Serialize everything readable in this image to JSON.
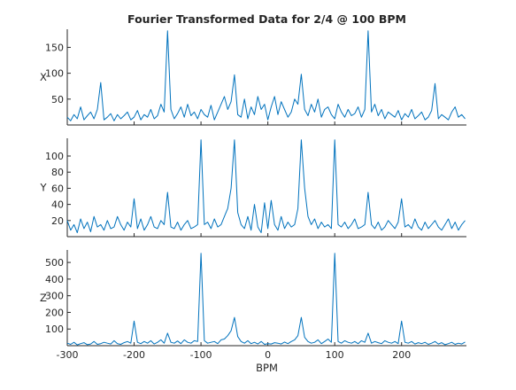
{
  "chart_data": [
    {
      "type": "line",
      "title": "Fourier Transformed Data for 2/4 @ 100 BPM",
      "xlabel": "",
      "ylabel": "X",
      "xlim": [
        -300,
        297
      ],
      "ylim": [
        0,
        185
      ],
      "xticks": [],
      "yticks": [
        50,
        100,
        150
      ],
      "grid": false,
      "line_color": "#0072bd",
      "series": [
        {
          "x": [
            -300,
            -295,
            -290,
            -285,
            -280,
            -275,
            -270,
            -265,
            -260,
            -255,
            -250,
            -245,
            -240,
            -235,
            -230,
            -225,
            -220,
            -215,
            -210,
            -205,
            -200,
            -195,
            -190,
            -185,
            -180,
            -175,
            -170,
            -165,
            -160,
            -155,
            -150,
            -145,
            -140,
            -135,
            -130,
            -125,
            -120,
            -115,
            -110,
            -105,
            -100,
            -95,
            -90,
            -85,
            -80,
            -75,
            -70,
            -65,
            -60,
            -55,
            -50,
            -45,
            -40,
            -35,
            -30,
            -25,
            -20,
            -15,
            -10,
            -5,
            0,
            5,
            10,
            15,
            20,
            25,
            30,
            35,
            40,
            45,
            50,
            55,
            60,
            65,
            70,
            75,
            80,
            85,
            90,
            95,
            100,
            105,
            110,
            115,
            120,
            125,
            130,
            135,
            140,
            145,
            150,
            155,
            160,
            165,
            170,
            175,
            180,
            185,
            190,
            195,
            200,
            205,
            210,
            215,
            220,
            225,
            230,
            235,
            240,
            245,
            250,
            255,
            260,
            265,
            270,
            275,
            280,
            285,
            290,
            295
          ],
          "values": [
            15,
            8,
            20,
            12,
            35,
            10,
            18,
            25,
            12,
            30,
            82,
            10,
            15,
            22,
            8,
            20,
            12,
            18,
            25,
            10,
            15,
            28,
            10,
            20,
            15,
            30,
            12,
            18,
            40,
            25,
            182,
            30,
            12,
            22,
            35,
            15,
            40,
            18,
            25,
            12,
            30,
            20,
            15,
            38,
            10,
            25,
            40,
            55,
            30,
            45,
            97,
            20,
            15,
            50,
            12,
            35,
            20,
            55,
            30,
            40,
            10,
            35,
            55,
            20,
            45,
            30,
            15,
            25,
            50,
            40,
            98,
            30,
            18,
            40,
            25,
            50,
            15,
            30,
            35,
            20,
            12,
            40,
            25,
            15,
            30,
            18,
            22,
            35,
            15,
            30,
            182,
            25,
            40,
            18,
            30,
            12,
            25,
            20,
            15,
            28,
            10,
            22,
            15,
            30,
            12,
            18,
            25,
            10,
            15,
            28,
            80,
            12,
            20,
            15,
            10,
            25,
            35,
            15,
            20,
            12
          ]
        }
      ]
    },
    {
      "type": "line",
      "title": "",
      "xlabel": "",
      "ylabel": "Y",
      "xlim": [
        -300,
        297
      ],
      "ylim": [
        0,
        122
      ],
      "xticks": [],
      "yticks": [
        20,
        40,
        60,
        80,
        100
      ],
      "grid": false,
      "line_color": "#0072bd",
      "series": [
        {
          "x": [
            -300,
            -295,
            -290,
            -285,
            -280,
            -275,
            -270,
            -265,
            -260,
            -255,
            -250,
            -245,
            -240,
            -235,
            -230,
            -225,
            -220,
            -215,
            -210,
            -205,
            -200,
            -195,
            -190,
            -185,
            -180,
            -175,
            -170,
            -165,
            -160,
            -155,
            -150,
            -145,
            -140,
            -135,
            -130,
            -125,
            -120,
            -115,
            -110,
            -105,
            -100,
            -95,
            -90,
            -85,
            -80,
            -75,
            -70,
            -65,
            -60,
            -55,
            -50,
            -45,
            -40,
            -35,
            -30,
            -25,
            -20,
            -15,
            -10,
            -5,
            0,
            5,
            10,
            15,
            20,
            25,
            30,
            35,
            40,
            45,
            50,
            55,
            60,
            65,
            70,
            75,
            80,
            85,
            90,
            95,
            100,
            105,
            110,
            115,
            120,
            125,
            130,
            135,
            140,
            145,
            150,
            155,
            160,
            165,
            170,
            175,
            180,
            185,
            190,
            195,
            200,
            205,
            210,
            215,
            220,
            225,
            230,
            235,
            240,
            245,
            250,
            255,
            260,
            265,
            270,
            275,
            280,
            285,
            290,
            295
          ],
          "values": [
            20,
            8,
            15,
            5,
            22,
            10,
            18,
            6,
            25,
            12,
            15,
            8,
            20,
            10,
            12,
            25,
            15,
            8,
            18,
            12,
            47,
            10,
            22,
            8,
            15,
            25,
            12,
            10,
            20,
            15,
            55,
            12,
            10,
            18,
            8,
            15,
            20,
            10,
            12,
            15,
            120,
            15,
            18,
            10,
            22,
            12,
            15,
            25,
            35,
            60,
            120,
            30,
            15,
            10,
            25,
            8,
            40,
            12,
            5,
            42,
            10,
            45,
            15,
            8,
            25,
            10,
            18,
            12,
            15,
            35,
            120,
            60,
            25,
            15,
            22,
            10,
            18,
            12,
            15,
            10,
            120,
            15,
            12,
            18,
            10,
            15,
            22,
            10,
            12,
            15,
            55,
            15,
            10,
            18,
            8,
            12,
            20,
            15,
            10,
            18,
            47,
            12,
            15,
            10,
            22,
            12,
            8,
            18,
            10,
            15,
            20,
            12,
            8,
            15,
            22,
            10,
            18,
            8,
            15,
            20
          ]
        }
      ]
    },
    {
      "type": "line",
      "title": "",
      "xlabel": "BPM",
      "ylabel": "Z",
      "xlim": [
        -300,
        297
      ],
      "ylim": [
        0,
        575
      ],
      "xticks": [
        -300,
        -200,
        -100,
        0,
        100,
        200
      ],
      "yticks": [
        100,
        200,
        300,
        400,
        500
      ],
      "grid": false,
      "line_color": "#0072bd",
      "series": [
        {
          "x": [
            -300,
            -295,
            -290,
            -285,
            -280,
            -275,
            -270,
            -265,
            -260,
            -255,
            -250,
            -245,
            -240,
            -235,
            -230,
            -225,
            -220,
            -215,
            -210,
            -205,
            -200,
            -195,
            -190,
            -185,
            -180,
            -175,
            -170,
            -165,
            -160,
            -155,
            -150,
            -145,
            -140,
            -135,
            -130,
            -125,
            -120,
            -115,
            -110,
            -105,
            -100,
            -95,
            -90,
            -85,
            -80,
            -75,
            -70,
            -65,
            -60,
            -55,
            -50,
            -45,
            -40,
            -35,
            -30,
            -25,
            -20,
            -15,
            -10,
            -5,
            0,
            5,
            10,
            15,
            20,
            25,
            30,
            35,
            40,
            45,
            50,
            55,
            60,
            65,
            70,
            75,
            80,
            85,
            90,
            95,
            100,
            105,
            110,
            115,
            120,
            125,
            130,
            135,
            140,
            145,
            150,
            155,
            160,
            165,
            170,
            175,
            180,
            185,
            190,
            195,
            200,
            205,
            210,
            215,
            220,
            225,
            230,
            235,
            240,
            245,
            250,
            255,
            260,
            265,
            270,
            275,
            280,
            285,
            290,
            295
          ],
          "values": [
            15,
            8,
            20,
            5,
            12,
            18,
            6,
            10,
            25,
            8,
            12,
            20,
            15,
            10,
            30,
            12,
            8,
            18,
            25,
            15,
            148,
            20,
            12,
            25,
            15,
            30,
            10,
            20,
            35,
            15,
            75,
            20,
            15,
            28,
            12,
            35,
            20,
            15,
            30,
            25,
            555,
            30,
            15,
            20,
            25,
            12,
            35,
            40,
            60,
            90,
            170,
            55,
            25,
            15,
            30,
            12,
            20,
            10,
            25,
            8,
            12,
            10,
            18,
            15,
            10,
            22,
            12,
            25,
            35,
            60,
            170,
            50,
            25,
            15,
            20,
            35,
            12,
            25,
            40,
            20,
            555,
            25,
            15,
            30,
            20,
            15,
            25,
            12,
            30,
            20,
            75,
            15,
            25,
            18,
            12,
            30,
            20,
            15,
            25,
            12,
            148,
            20,
            15,
            25,
            10,
            18,
            12,
            20,
            8,
            15,
            25,
            10,
            18,
            6,
            12,
            20,
            8,
            15,
            10,
            22
          ]
        }
      ]
    }
  ]
}
